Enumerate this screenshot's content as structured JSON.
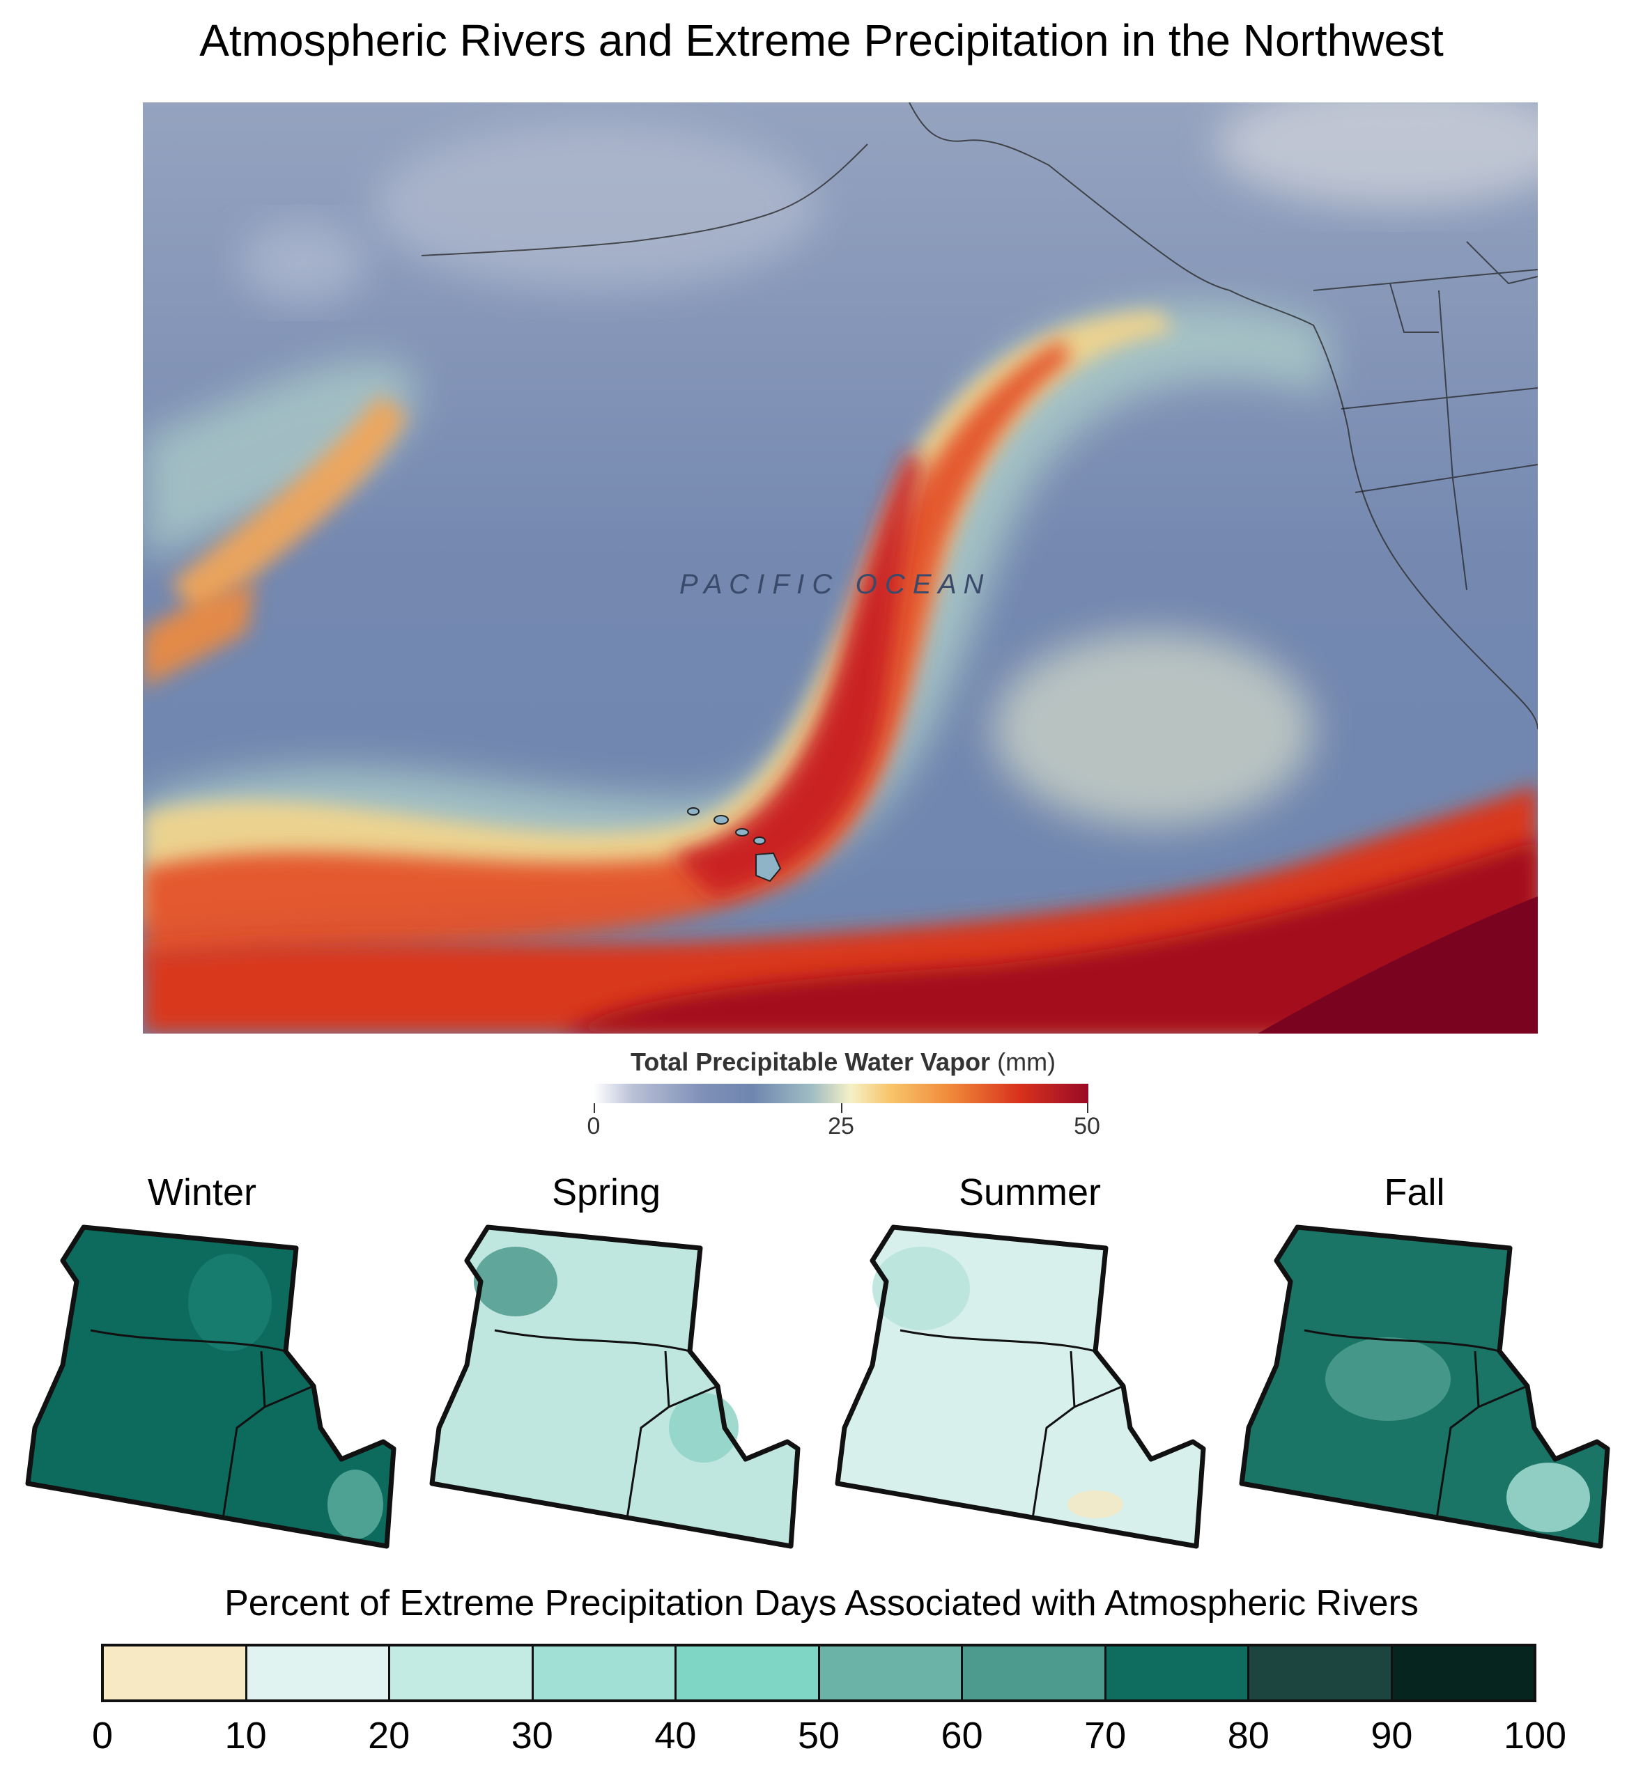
{
  "title": "Atmospheric Rivers and Extreme Precipitation in the Northwest",
  "map": {
    "ocean_label": "P A C I F I C   O C E A N",
    "legend": {
      "title_bold": "Total Precipitable Water Vapor",
      "title_unit": "(mm)",
      "ticks": [
        "0",
        "25",
        "50"
      ],
      "colors": [
        "#ffffff",
        "#7f90b8",
        "#f5f0c6",
        "#f08a3a",
        "#d8321d",
        "#9a0a25"
      ]
    }
  },
  "seasons": [
    {
      "label": "Winter",
      "colors": [
        "#0d6b5e",
        "#1a7f70",
        "#5aab9c"
      ]
    },
    {
      "label": "Spring",
      "colors": [
        "#bfe7e0",
        "#8fd3c7",
        "#4f9a8e"
      ]
    },
    {
      "label": "Summer",
      "colors": [
        "#d7f0ec",
        "#b7e3dc",
        "#f6e9c4"
      ]
    },
    {
      "label": "Fall",
      "colors": [
        "#1a7566",
        "#4d9e90",
        "#a6ddd3"
      ]
    }
  ],
  "ar_legend": {
    "title": "Percent of Extreme Precipitation Days Associated with Atmospheric Rivers",
    "ticks": [
      "0",
      "10",
      "20",
      "30",
      "40",
      "50",
      "60",
      "70",
      "80",
      "90",
      "100"
    ],
    "colors": [
      "#f6e9c4",
      "#e0f3f1",
      "#c3ebe4",
      "#a1e0d5",
      "#7fd6c5",
      "#6cb3a7",
      "#4d9a8e",
      "#0f6d5f",
      "#1b453e",
      "#06251f"
    ]
  }
}
